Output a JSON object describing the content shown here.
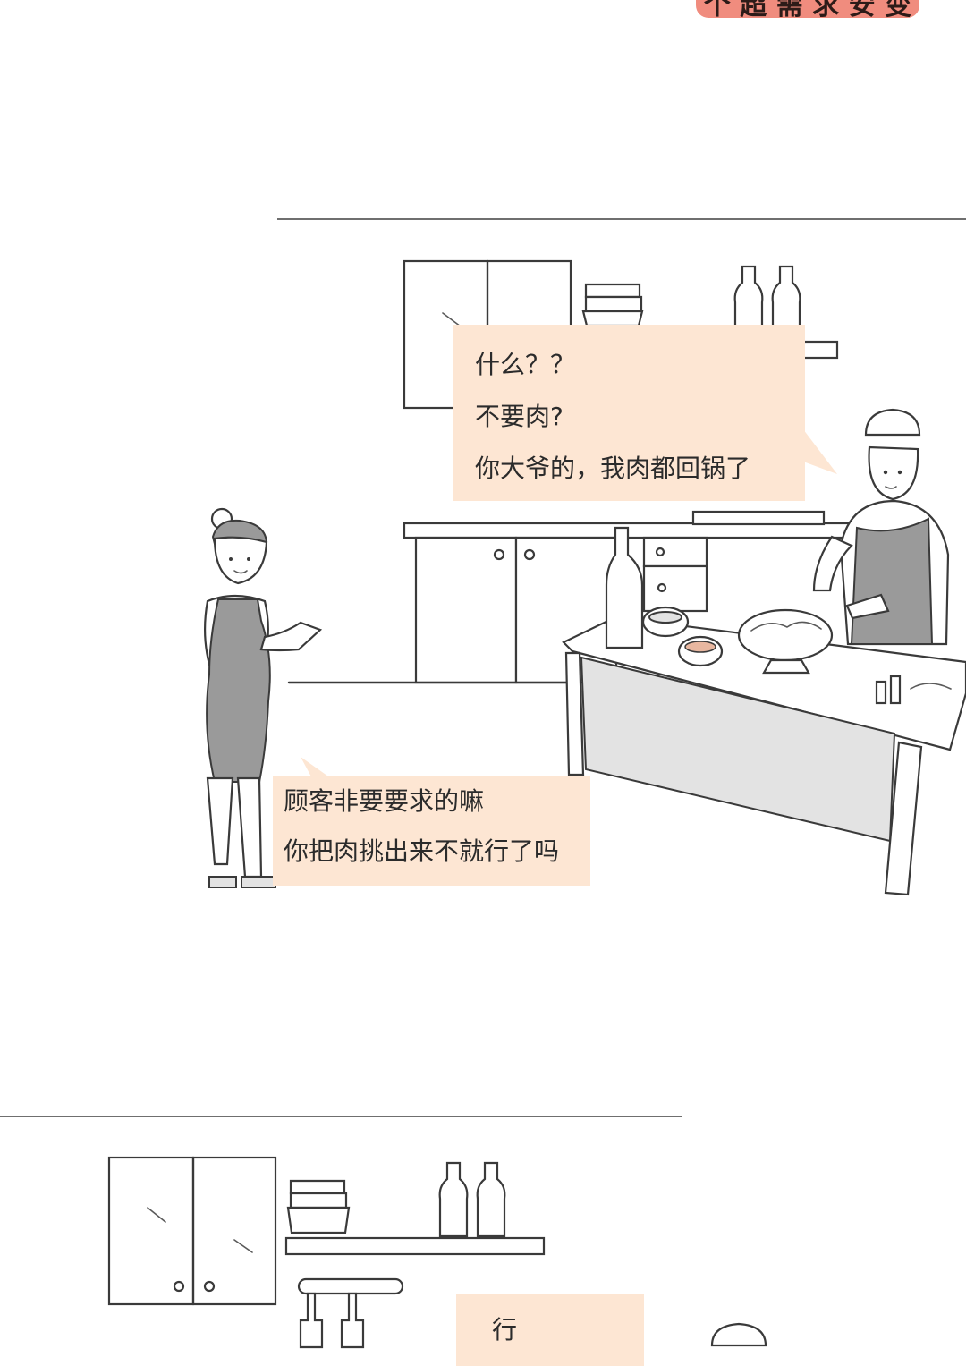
{
  "header": {
    "tag_label": "个 超 需 求 安 变"
  },
  "panel1": {
    "chef_bubble": {
      "lines": [
        "什么？？",
        "不要肉?",
        "你大爷的，我肉都回锅了"
      ]
    },
    "waitress_bubble": {
      "lines": [
        "顾客非要要求的嘛",
        "你把肉挑出来不就行了吗"
      ]
    }
  },
  "panel2": {
    "bubble": {
      "lines": [
        "行"
      ]
    }
  },
  "colors": {
    "bubble": "#fde6d3",
    "tag": "#f08c7e",
    "ink": "#3a3a3a"
  }
}
